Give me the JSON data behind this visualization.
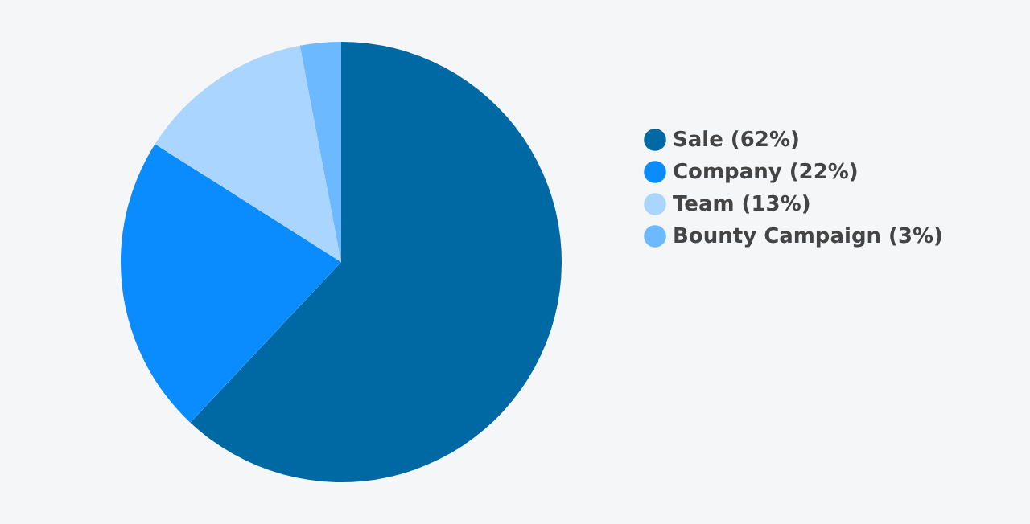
{
  "chart_data": {
    "type": "pie",
    "categories": [
      "Sale (62%)",
      "Company (22%)",
      "Team (13%)",
      "Bounty Campaign (3%)"
    ],
    "values": [
      62,
      22,
      13,
      3
    ],
    "colors": [
      "#0068a3",
      "#0a8cff",
      "#a9d5ff",
      "#6cb9ff"
    ],
    "legend": "right"
  }
}
